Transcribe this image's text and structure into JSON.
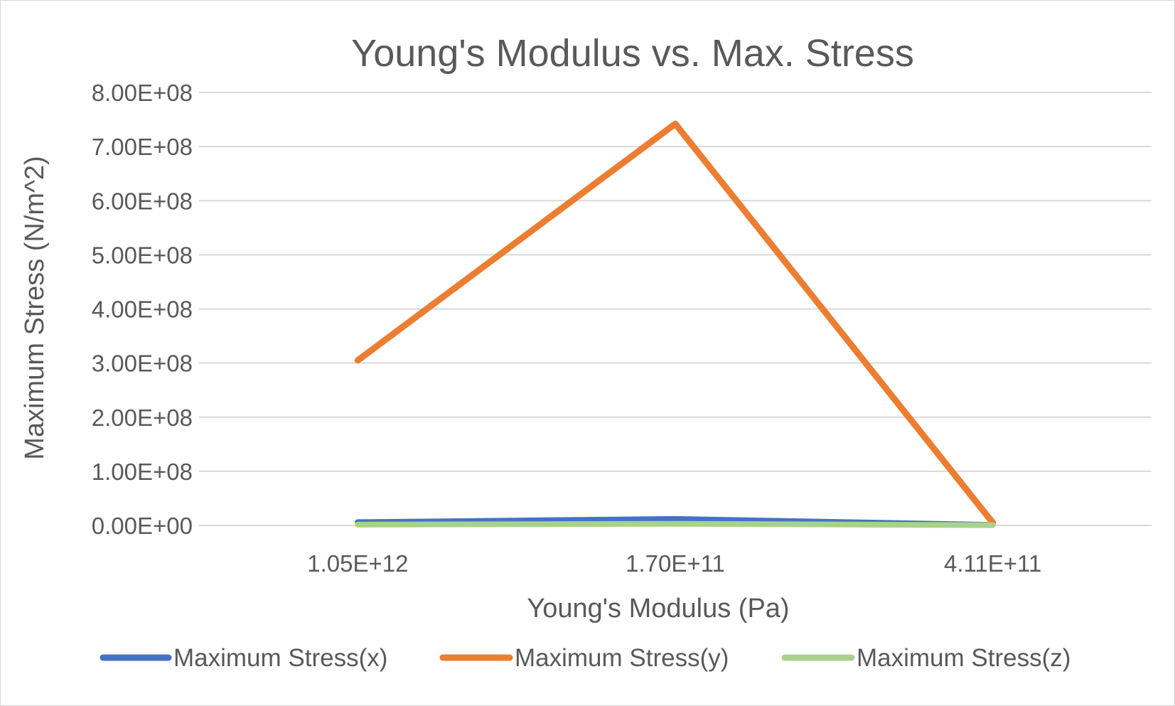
{
  "chart_data": {
    "type": "line",
    "title": "Young's Modulus vs. Max. Stress",
    "xlabel": "Young's Modulus (Pa)",
    "ylabel": "Maximum Stress (N/m^2)",
    "categories": [
      "1.05E+12",
      "1.70E+11",
      "4.11E+11"
    ],
    "ylim": [
      0,
      800000000
    ],
    "yticks": [
      0,
      100000000,
      200000000,
      300000000,
      400000000,
      500000000,
      600000000,
      700000000,
      800000000
    ],
    "ytick_labels": [
      "0.00E+00",
      "1.00E+08",
      "2.00E+08",
      "3.00E+08",
      "4.00E+08",
      "5.00E+08",
      "6.00E+08",
      "7.00E+08",
      "8.00E+08"
    ],
    "grid": true,
    "legend_position": "bottom",
    "series": [
      {
        "name": "Maximum Stress(x)",
        "values": [
          6000000,
          12000000,
          1000000
        ],
        "color": "#4472C4"
      },
      {
        "name": "Maximum Stress(y)",
        "values": [
          305000000,
          742000000,
          5000000
        ],
        "color": "#ED7D31"
      },
      {
        "name": "Maximum Stress(z)",
        "values": [
          1500000,
          3000000,
          500000
        ],
        "color": "#A9D18E"
      }
    ],
    "colors": {
      "text": "#595959",
      "grid": "#d9d9d9",
      "axis": "#d9d9d9"
    }
  }
}
